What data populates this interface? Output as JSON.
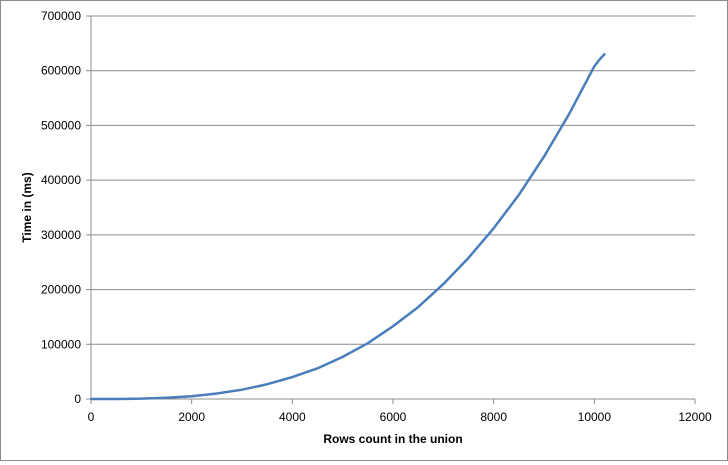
{
  "chart_data": {
    "type": "line",
    "xlabel": "Rows count in the union",
    "ylabel": "Time in (ms)",
    "xlim": [
      0,
      12000
    ],
    "ylim": [
      0,
      700000
    ],
    "x_ticks": [
      "0",
      "2000",
      "4000",
      "6000",
      "8000",
      "10000",
      "12000"
    ],
    "y_ticks": [
      "0",
      "100000",
      "200000",
      "300000",
      "400000",
      "500000",
      "600000",
      "700000"
    ],
    "grid": "horizontal",
    "legend": "none",
    "series": [
      {
        "color": "#4a7ebb",
        "x": [
          0,
          500,
          1000,
          1500,
          2000,
          2500,
          3000,
          3500,
          4000,
          4500,
          5000,
          5500,
          6000,
          6500,
          7000,
          7500,
          8000,
          8500,
          9000,
          9500,
          10000,
          10100,
          10200
        ],
        "y": [
          0,
          100,
          600,
          2300,
          5000,
          10000,
          17000,
          27000,
          40000,
          56000,
          77000,
          102000,
          133000,
          168000,
          210000,
          258000,
          312000,
          373000,
          443000,
          521000,
          608000,
          620000,
          630000
        ]
      }
    ]
  }
}
